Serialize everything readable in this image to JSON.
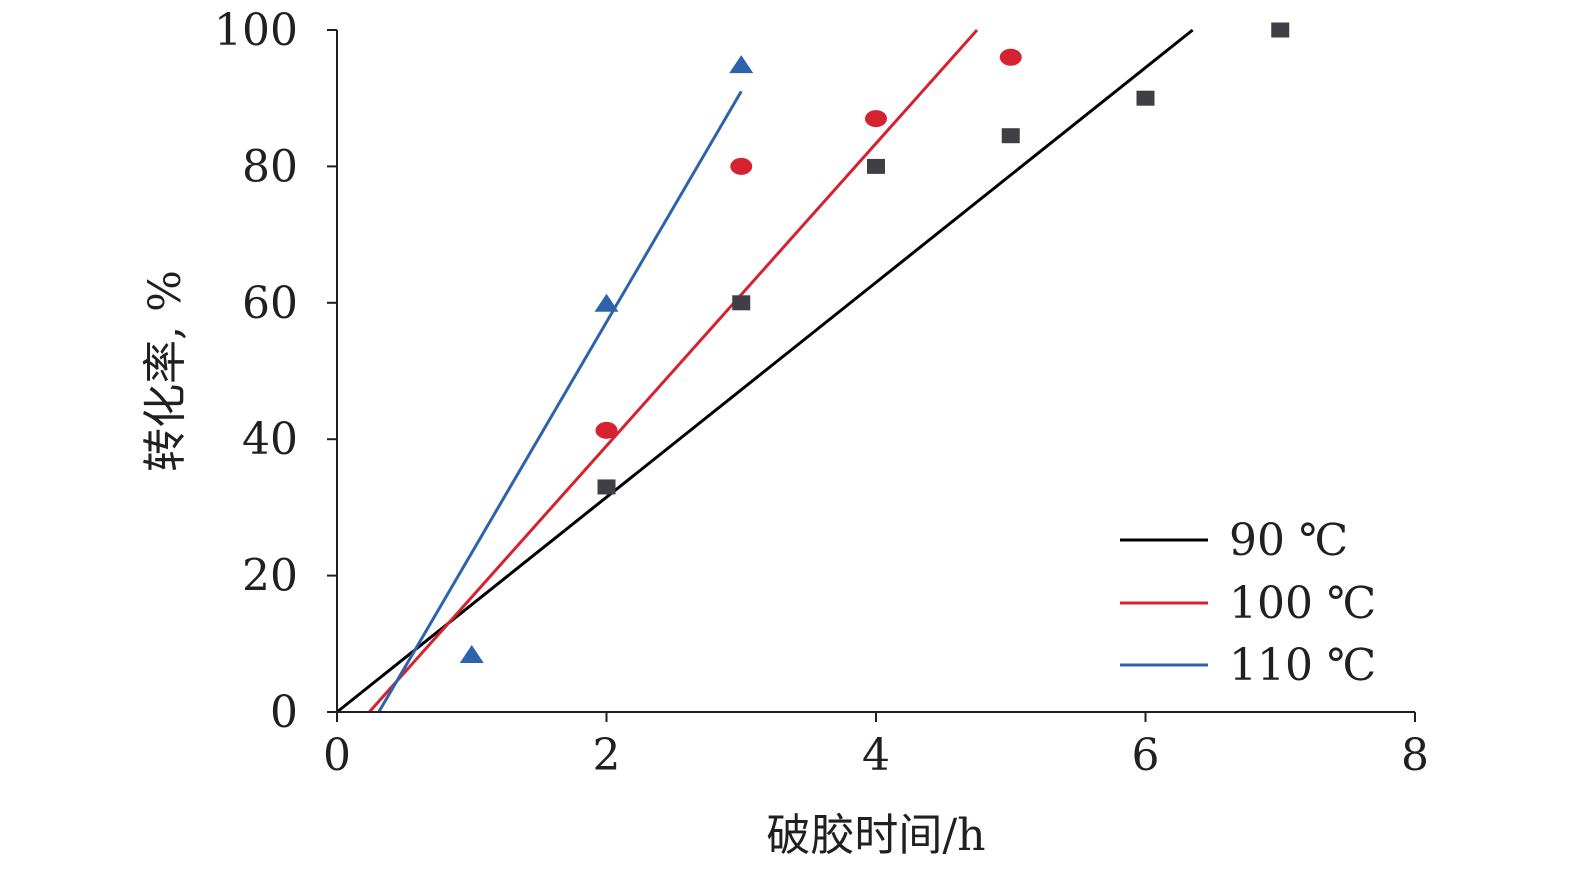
{
  "chart_data": {
    "type": "scatter",
    "xlabel": "破胶时间/h",
    "ylabel": "转化率, %",
    "xlim": [
      0,
      8
    ],
    "ylim": [
      0,
      100
    ],
    "x_ticks": [
      0,
      2,
      4,
      6,
      8
    ],
    "y_ticks": [
      0,
      20,
      40,
      60,
      80,
      100
    ],
    "grid": false,
    "legend_position": "bottom-right",
    "series": [
      {
        "name": "90 ℃",
        "color": "#000000",
        "marker_color": "#3f3f45",
        "marker": "square",
        "points": [
          {
            "x": 2,
            "y": 33
          },
          {
            "x": 3,
            "y": 60
          },
          {
            "x": 4,
            "y": 80
          },
          {
            "x": 5,
            "y": 84.5
          },
          {
            "x": 6,
            "y": 90
          },
          {
            "x": 7,
            "y": 100
          }
        ],
        "fit_line": {
          "x": [
            0,
            6.35
          ],
          "y": [
            0,
            100
          ]
        }
      },
      {
        "name": "100 ℃",
        "color": "#d42230",
        "marker_color": "#d42230",
        "marker": "circle",
        "points": [
          {
            "x": 2,
            "y": 41.3
          },
          {
            "x": 3,
            "y": 80
          },
          {
            "x": 4,
            "y": 87
          },
          {
            "x": 5,
            "y": 96
          }
        ],
        "fit_line": {
          "x": [
            0.24,
            4.75
          ],
          "y": [
            0,
            100
          ]
        }
      },
      {
        "name": "110 ℃",
        "color": "#2d63ab",
        "marker_color": "#2d63ab",
        "marker": "triangle",
        "points": [
          {
            "x": 1,
            "y": 8.5
          },
          {
            "x": 2,
            "y": 60
          },
          {
            "x": 3,
            "y": 95
          }
        ],
        "fit_line": {
          "x": [
            0.31,
            3.0
          ],
          "y": [
            0,
            91
          ]
        }
      }
    ]
  }
}
